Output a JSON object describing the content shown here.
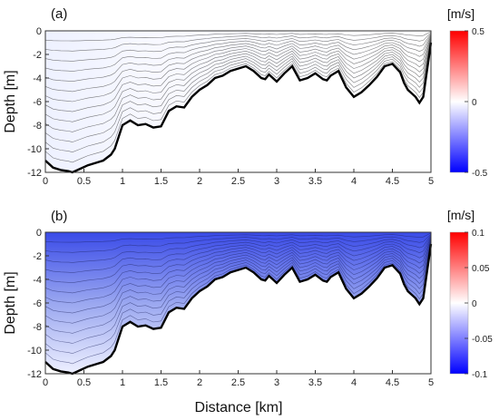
{
  "chart_data": [
    {
      "type": "heatmap",
      "panel_label": "(a)",
      "xlabel": "",
      "ylabel": "Depth [m]",
      "xlim": [
        0,
        5
      ],
      "ylim": [
        -12,
        0
      ],
      "x_ticks": [
        "0",
        "0.5",
        "1",
        "1.5",
        "2",
        "2.5",
        "3",
        "3.5",
        "4",
        "4.5",
        "5"
      ],
      "y_ticks": [
        "0",
        "-2",
        "-4",
        "-6",
        "-8",
        "-10",
        "-12"
      ],
      "colorbar": {
        "unit": "[m/s]",
        "range": [
          -0.5,
          0.5
        ],
        "ticks": [
          "0.5",
          "0",
          "-0.5"
        ],
        "low_color": "#0000ff",
        "mid_color": "#ffffff",
        "high_color": "#ff0000"
      },
      "bottom_profile": {
        "x": [
          0,
          0.1,
          0.2,
          0.3,
          0.35,
          0.45,
          0.55,
          0.65,
          0.75,
          0.85,
          0.9,
          1.0,
          1.1,
          1.2,
          1.3,
          1.4,
          1.5,
          1.6,
          1.7,
          1.8,
          1.9,
          2.0,
          2.1,
          2.2,
          2.3,
          2.4,
          2.5,
          2.6,
          2.7,
          2.8,
          2.85,
          2.9,
          3.0,
          3.1,
          3.2,
          3.3,
          3.4,
          3.5,
          3.6,
          3.65,
          3.7,
          3.8,
          3.9,
          4.0,
          4.1,
          4.2,
          4.3,
          4.4,
          4.5,
          4.6,
          4.65,
          4.7,
          4.8,
          4.85,
          4.9,
          5.0
        ],
        "depth": [
          -11,
          -11.6,
          -11.8,
          -11.9,
          -12,
          -11.7,
          -11.4,
          -11.2,
          -11,
          -10.5,
          -10,
          -8,
          -7.6,
          -8,
          -7.9,
          -8.2,
          -8.1,
          -6.8,
          -6.4,
          -6.5,
          -5.6,
          -5.0,
          -4.6,
          -4.0,
          -3.8,
          -3.4,
          -3.2,
          -3.0,
          -3.4,
          -4.0,
          -4.1,
          -3.7,
          -4.3,
          -3.6,
          -3.0,
          -4.2,
          -4.0,
          -3.6,
          -4.1,
          -4.2,
          -3.8,
          -3.4,
          -4.8,
          -5.6,
          -5.2,
          -4.6,
          -3.9,
          -3.0,
          -2.8,
          -3.5,
          -4.4,
          -5.0,
          -5.6,
          -6.1,
          -5.6,
          -1.0
        ]
      },
      "contour_count": 13
    },
    {
      "type": "heatmap",
      "panel_label": "(b)",
      "xlabel": "Distance [km]",
      "ylabel": "Depth [m]",
      "xlim": [
        0,
        5
      ],
      "ylim": [
        -12,
        0
      ],
      "x_ticks": [
        "0",
        "0.5",
        "1",
        "1.5",
        "2",
        "2.5",
        "3",
        "3.5",
        "4",
        "4.5",
        "5"
      ],
      "y_ticks": [
        "0",
        "-2",
        "-4",
        "-6",
        "-8",
        "-10",
        "-12"
      ],
      "colorbar": {
        "unit": "[m/s]",
        "range": [
          -0.1,
          0.1
        ],
        "ticks": [
          "0.1",
          "0.05",
          "0",
          "-0.05",
          "-0.1"
        ],
        "low_color": "#0000ff",
        "mid_color": "#ffffff",
        "high_color": "#ff0000"
      },
      "contour_count": 13
    }
  ]
}
